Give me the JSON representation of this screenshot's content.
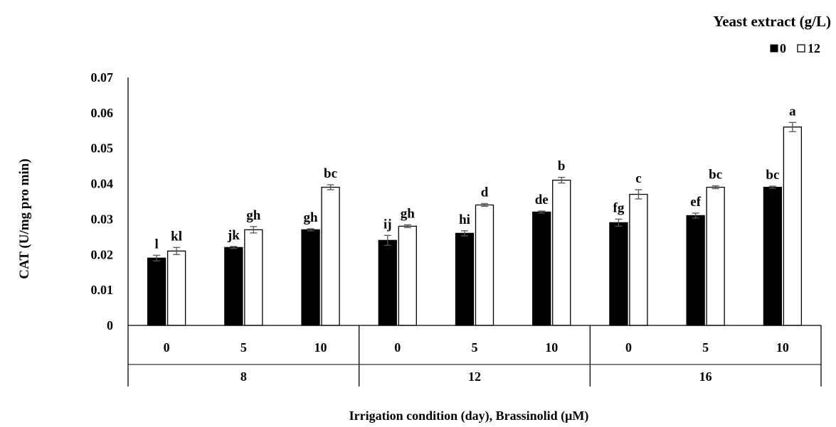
{
  "chart_data": {
    "type": "bar",
    "title": "",
    "ylabel": "CAT (U/mg pro min)",
    "xlabel": "Irrigation condition (day),  Brassinolid (μM)",
    "ylim": [
      0,
      0.07
    ],
    "yticks": [
      "0",
      "0.01",
      "0.02",
      "0.03",
      "0.04",
      "0.05",
      "0.06",
      "0.07"
    ],
    "ytick_values": [
      0,
      0.01,
      0.02,
      0.03,
      0.04,
      0.05,
      0.06,
      0.07
    ],
    "legend": {
      "title": "Yeast extract (g/L)",
      "position": "top-right",
      "entries": [
        "0",
        "12"
      ]
    },
    "groups": [
      {
        "label": "8",
        "categories": [
          {
            "label": "0",
            "bars": [
              {
                "value": 0.019,
                "err": 0.0008,
                "letter": "l"
              },
              {
                "value": 0.021,
                "err": 0.001,
                "letter": "kl"
              }
            ]
          },
          {
            "label": "5",
            "bars": [
              {
                "value": 0.022,
                "err": 0.0003,
                "letter": "jk"
              },
              {
                "value": 0.027,
                "err": 0.0009,
                "letter": "gh"
              }
            ]
          },
          {
            "label": "10",
            "bars": [
              {
                "value": 0.027,
                "err": 0.0003,
                "letter": "gh"
              },
              {
                "value": 0.039,
                "err": 0.0007,
                "letter": "bc"
              }
            ]
          }
        ]
      },
      {
        "label": "12",
        "categories": [
          {
            "label": "0",
            "bars": [
              {
                "value": 0.024,
                "err": 0.0014,
                "letter": "ij"
              },
              {
                "value": 0.028,
                "err": 0.0004,
                "letter": "gh"
              }
            ]
          },
          {
            "label": "5",
            "bars": [
              {
                "value": 0.026,
                "err": 0.0007,
                "letter": "hi"
              },
              {
                "value": 0.034,
                "err": 0.0004,
                "letter": "d"
              }
            ]
          },
          {
            "label": "10",
            "bars": [
              {
                "value": 0.032,
                "err": 0.0003,
                "letter": "de"
              },
              {
                "value": 0.041,
                "err": 0.0008,
                "letter": "b"
              }
            ]
          }
        ]
      },
      {
        "label": "16",
        "categories": [
          {
            "label": "0",
            "bars": [
              {
                "value": 0.029,
                "err": 0.001,
                "letter": "fg"
              },
              {
                "value": 0.037,
                "err": 0.0013,
                "letter": "c"
              }
            ]
          },
          {
            "label": "5",
            "bars": [
              {
                "value": 0.031,
                "err": 0.0007,
                "letter": "ef"
              },
              {
                "value": 0.039,
                "err": 0.0004,
                "letter": "bc"
              }
            ]
          },
          {
            "label": "10",
            "bars": [
              {
                "value": 0.039,
                "err": 0.0003,
                "letter": "bc"
              },
              {
                "value": 0.056,
                "err": 0.0013,
                "letter": "a"
              }
            ]
          }
        ]
      }
    ],
    "series": [
      {
        "name": "0",
        "color": "#000000"
      },
      {
        "name": "12",
        "color": "#ffffff"
      }
    ]
  }
}
